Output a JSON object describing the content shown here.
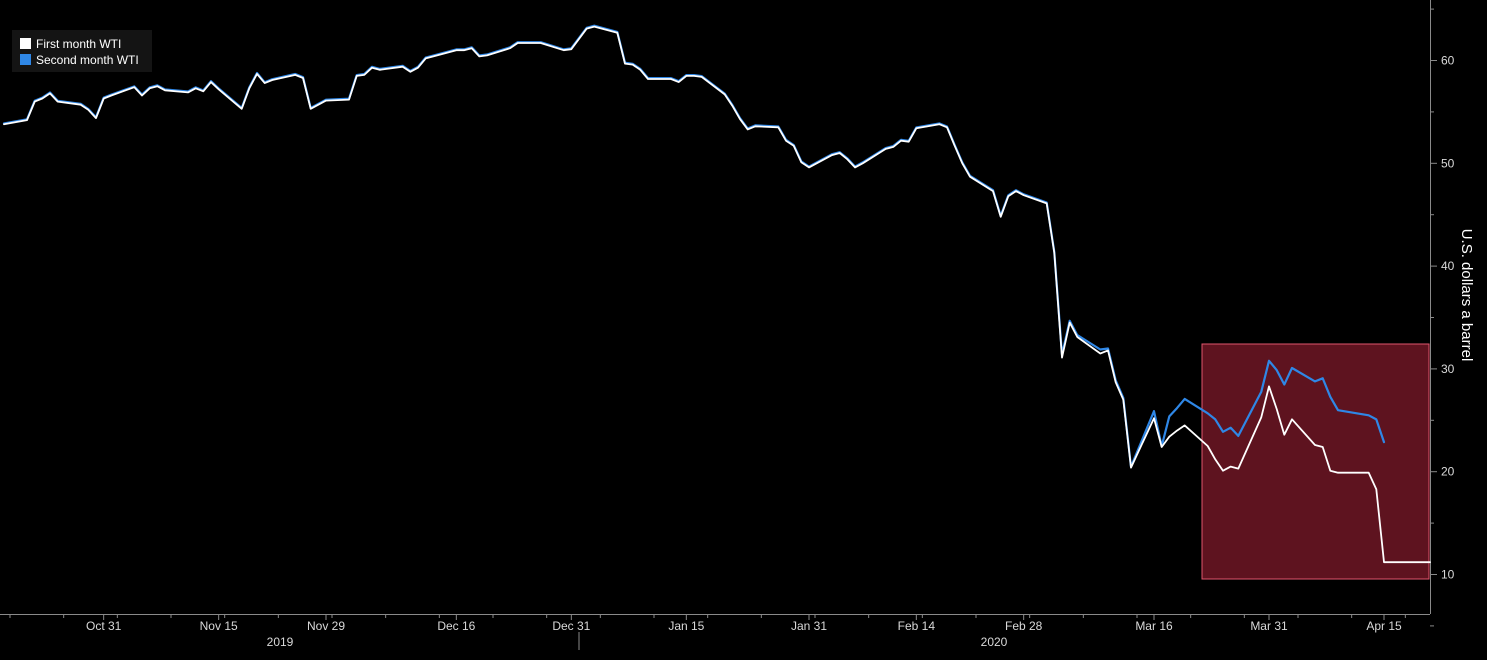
{
  "chart_data": {
    "type": "line",
    "title": "",
    "ylabel": "U.S. dollars a barrel",
    "ylim": [
      5,
      65
    ],
    "y_ticks": [
      10,
      20,
      30,
      40,
      50,
      60
    ],
    "x_tick_labels": [
      "Oct 31",
      "Nov 15",
      "Nov 29",
      "Dec 16",
      "Dec 31",
      "Jan 15",
      "Jan 31",
      "Feb 14",
      "Feb 28",
      "Mar 16",
      "Mar 31",
      "Apr 15"
    ],
    "year_labels": [
      "2019",
      "2020"
    ],
    "legend": {
      "position": "top-left",
      "entries": [
        {
          "label": "First month WTI",
          "color": "#ffffff"
        },
        {
          "label": "Second month WTI",
          "color": "#2f87e6"
        }
      ]
    },
    "highlight_color": "#d02a45",
    "x_start": "2019-10-18",
    "x_end": "2020-04-21",
    "series": [
      {
        "name": "First month WTI",
        "color": "#ffffff",
        "data": [
          [
            "2019-10-18",
            53.8
          ],
          [
            "2019-10-21",
            54.2
          ],
          [
            "2019-10-22",
            56.0
          ],
          [
            "2019-10-23",
            56.3
          ],
          [
            "2019-10-24",
            56.8
          ],
          [
            "2019-10-25",
            56.0
          ],
          [
            "2019-10-28",
            55.7
          ],
          [
            "2019-10-29",
            55.2
          ],
          [
            "2019-10-30",
            54.4
          ],
          [
            "2019-10-31",
            56.3
          ],
          [
            "2019-11-01",
            56.6
          ],
          [
            "2019-11-04",
            57.4
          ],
          [
            "2019-11-05",
            56.6
          ],
          [
            "2019-11-06",
            57.3
          ],
          [
            "2019-11-07",
            57.5
          ],
          [
            "2019-11-08",
            57.1
          ],
          [
            "2019-11-11",
            56.9
          ],
          [
            "2019-11-12",
            57.3
          ],
          [
            "2019-11-13",
            57.0
          ],
          [
            "2019-11-14",
            57.9
          ],
          [
            "2019-11-15",
            57.2
          ],
          [
            "2019-11-18",
            55.3
          ],
          [
            "2019-11-19",
            57.3
          ],
          [
            "2019-11-20",
            58.7
          ],
          [
            "2019-11-21",
            57.8
          ],
          [
            "2019-11-22",
            58.1
          ],
          [
            "2019-11-25",
            58.6
          ],
          [
            "2019-11-26",
            58.3
          ],
          [
            "2019-11-27",
            55.3
          ],
          [
            "2019-11-29",
            56.1
          ],
          [
            "2019-12-02",
            56.2
          ],
          [
            "2019-12-03",
            58.5
          ],
          [
            "2019-12-04",
            58.6
          ],
          [
            "2019-12-05",
            59.3
          ],
          [
            "2019-12-06",
            59.1
          ],
          [
            "2019-12-09",
            59.4
          ],
          [
            "2019-12-10",
            58.9
          ],
          [
            "2019-12-11",
            59.3
          ],
          [
            "2019-12-12",
            60.2
          ],
          [
            "2019-12-13",
            60.4
          ],
          [
            "2019-12-16",
            61.0
          ],
          [
            "2019-12-17",
            61.0
          ],
          [
            "2019-12-18",
            61.2
          ],
          [
            "2019-12-19",
            60.4
          ],
          [
            "2019-12-20",
            60.5
          ],
          [
            "2019-12-23",
            61.2
          ],
          [
            "2019-12-24",
            61.7
          ],
          [
            "2019-12-26",
            61.7
          ],
          [
            "2019-12-27",
            61.7
          ],
          [
            "2019-12-30",
            61.0
          ],
          [
            "2019-12-31",
            61.1
          ],
          [
            "2020-01-02",
            63.1
          ],
          [
            "2020-01-03",
            63.3
          ],
          [
            "2020-01-06",
            62.7
          ],
          [
            "2020-01-07",
            59.7
          ],
          [
            "2020-01-08",
            59.6
          ],
          [
            "2020-01-09",
            59.1
          ],
          [
            "2020-01-10",
            58.2
          ],
          [
            "2020-01-13",
            58.2
          ],
          [
            "2020-01-14",
            57.9
          ],
          [
            "2020-01-15",
            58.5
          ],
          [
            "2020-01-16",
            58.5
          ],
          [
            "2020-01-17",
            58.4
          ],
          [
            "2020-01-20",
            56.7
          ],
          [
            "2020-01-21",
            55.6
          ],
          [
            "2020-01-22",
            54.3
          ],
          [
            "2020-01-23",
            53.3
          ],
          [
            "2020-01-24",
            53.6
          ],
          [
            "2020-01-27",
            53.5
          ],
          [
            "2020-01-28",
            52.2
          ],
          [
            "2020-01-29",
            51.7
          ],
          [
            "2020-01-30",
            50.1
          ],
          [
            "2020-01-31",
            49.6
          ],
          [
            "2020-02-03",
            50.8
          ],
          [
            "2020-02-04",
            51.0
          ],
          [
            "2020-02-05",
            50.4
          ],
          [
            "2020-02-06",
            49.6
          ],
          [
            "2020-02-07",
            50.0
          ],
          [
            "2020-02-10",
            51.4
          ],
          [
            "2020-02-11",
            51.6
          ],
          [
            "2020-02-12",
            52.2
          ],
          [
            "2020-02-13",
            52.1
          ],
          [
            "2020-02-14",
            53.4
          ],
          [
            "2020-02-17",
            53.8
          ],
          [
            "2020-02-18",
            53.5
          ],
          [
            "2020-02-19",
            51.7
          ],
          [
            "2020-02-20",
            50.0
          ],
          [
            "2020-02-21",
            48.7
          ],
          [
            "2020-02-24",
            47.3
          ],
          [
            "2020-02-25",
            44.8
          ],
          [
            "2020-02-26",
            46.8
          ],
          [
            "2020-02-27",
            47.3
          ],
          [
            "2020-02-28",
            46.9
          ],
          [
            "2020-03-02",
            46.1
          ],
          [
            "2020-03-03",
            41.3
          ],
          [
            "2020-03-04",
            31.1
          ],
          [
            "2020-03-05",
            34.5
          ],
          [
            "2020-03-06",
            33.1
          ],
          [
            "2020-03-09",
            31.5
          ],
          [
            "2020-03-10",
            31.8
          ],
          [
            "2020-03-11",
            28.7
          ],
          [
            "2020-03-12",
            27.0
          ],
          [
            "2020-03-13",
            20.4
          ],
          [
            "2020-03-16",
            25.2
          ],
          [
            "2020-03-17",
            22.4
          ],
          [
            "2020-03-18",
            23.4
          ],
          [
            "2020-03-19",
            24.0
          ],
          [
            "2020-03-20",
            24.5
          ],
          [
            "2020-03-23",
            22.5
          ],
          [
            "2020-03-24",
            21.2
          ],
          [
            "2020-03-25",
            20.1
          ],
          [
            "2020-03-26",
            20.5
          ],
          [
            "2020-03-27",
            20.3
          ],
          [
            "2020-03-30",
            25.3
          ],
          [
            "2020-03-31",
            28.3
          ],
          [
            "2020-04-01",
            26.1
          ],
          [
            "2020-04-02",
            23.6
          ],
          [
            "2020-04-03",
            25.1
          ],
          [
            "2020-04-06",
            22.6
          ],
          [
            "2020-04-07",
            22.4
          ],
          [
            "2020-04-08",
            20.1
          ],
          [
            "2020-04-09",
            19.9
          ],
          [
            "2020-04-13",
            19.9
          ],
          [
            "2020-04-14",
            18.3
          ],
          [
            "2020-04-15",
            11.2
          ],
          [
            "2020-04-16",
            11.2
          ],
          [
            "2020-04-21",
            11.2
          ]
        ]
      },
      {
        "name": "Second month WTI",
        "color": "#2f87e6",
        "data": [
          [
            "2019-10-18",
            54.0
          ],
          [
            "2019-10-21",
            54.4
          ],
          [
            "2019-10-22",
            56.2
          ],
          [
            "2019-10-23",
            56.5
          ],
          [
            "2019-10-24",
            57.0
          ],
          [
            "2019-10-25",
            56.2
          ],
          [
            "2019-10-28",
            55.9
          ],
          [
            "2019-10-29",
            55.4
          ],
          [
            "2019-10-30",
            54.6
          ],
          [
            "2019-10-31",
            56.5
          ],
          [
            "2019-11-01",
            56.8
          ],
          [
            "2019-11-04",
            57.6
          ],
          [
            "2019-11-05",
            56.8
          ],
          [
            "2019-11-06",
            57.5
          ],
          [
            "2019-11-07",
            57.7
          ],
          [
            "2019-11-08",
            57.3
          ],
          [
            "2019-11-11",
            57.1
          ],
          [
            "2019-11-12",
            57.5
          ],
          [
            "2019-11-13",
            57.2
          ],
          [
            "2019-11-14",
            58.1
          ],
          [
            "2019-11-15",
            57.4
          ],
          [
            "2019-11-18",
            55.5
          ],
          [
            "2019-11-19",
            57.5
          ],
          [
            "2019-11-20",
            58.9
          ],
          [
            "2019-11-21",
            58.0
          ],
          [
            "2019-11-22",
            58.3
          ],
          [
            "2019-11-25",
            58.8
          ],
          [
            "2019-11-26",
            58.5
          ],
          [
            "2019-11-27",
            55.5
          ],
          [
            "2019-11-29",
            56.3
          ],
          [
            "2019-12-02",
            56.4
          ],
          [
            "2019-12-03",
            58.7
          ],
          [
            "2019-12-04",
            58.8
          ],
          [
            "2019-12-05",
            59.5
          ],
          [
            "2019-12-06",
            59.3
          ],
          [
            "2019-12-09",
            59.6
          ],
          [
            "2019-12-10",
            59.1
          ],
          [
            "2019-12-11",
            59.5
          ],
          [
            "2019-12-12",
            60.4
          ],
          [
            "2019-12-13",
            60.6
          ],
          [
            "2019-12-16",
            61.2
          ],
          [
            "2019-12-17",
            61.2
          ],
          [
            "2019-12-18",
            61.4
          ],
          [
            "2019-12-19",
            60.6
          ],
          [
            "2019-12-20",
            60.7
          ],
          [
            "2019-12-23",
            61.4
          ],
          [
            "2019-12-24",
            61.9
          ],
          [
            "2019-12-26",
            61.9
          ],
          [
            "2019-12-27",
            61.9
          ],
          [
            "2019-12-30",
            61.2
          ],
          [
            "2019-12-31",
            61.3
          ],
          [
            "2020-01-02",
            63.3
          ],
          [
            "2020-01-03",
            63.5
          ],
          [
            "2020-01-06",
            62.9
          ],
          [
            "2020-01-07",
            59.9
          ],
          [
            "2020-01-08",
            59.8
          ],
          [
            "2020-01-09",
            59.3
          ],
          [
            "2020-01-10",
            58.4
          ],
          [
            "2020-01-13",
            58.4
          ],
          [
            "2020-01-14",
            58.1
          ],
          [
            "2020-01-15",
            58.7
          ],
          [
            "2020-01-16",
            58.7
          ],
          [
            "2020-01-17",
            58.6
          ],
          [
            "2020-01-20",
            56.9
          ],
          [
            "2020-01-21",
            55.8
          ],
          [
            "2020-01-22",
            54.5
          ],
          [
            "2020-01-23",
            53.5
          ],
          [
            "2020-01-24",
            53.8
          ],
          [
            "2020-01-27",
            53.7
          ],
          [
            "2020-01-28",
            52.4
          ],
          [
            "2020-01-29",
            51.9
          ],
          [
            "2020-01-30",
            50.3
          ],
          [
            "2020-01-31",
            49.8
          ],
          [
            "2020-02-03",
            51.0
          ],
          [
            "2020-02-04",
            51.2
          ],
          [
            "2020-02-05",
            50.6
          ],
          [
            "2020-02-06",
            49.8
          ],
          [
            "2020-02-07",
            50.2
          ],
          [
            "2020-02-10",
            51.6
          ],
          [
            "2020-02-11",
            51.8
          ],
          [
            "2020-02-12",
            52.4
          ],
          [
            "2020-02-13",
            52.3
          ],
          [
            "2020-02-14",
            53.6
          ],
          [
            "2020-02-17",
            54.0
          ],
          [
            "2020-02-18",
            53.7
          ],
          [
            "2020-02-19",
            51.9
          ],
          [
            "2020-02-20",
            50.2
          ],
          [
            "2020-02-21",
            48.9
          ],
          [
            "2020-02-24",
            47.5
          ],
          [
            "2020-02-25",
            45.0
          ],
          [
            "2020-02-26",
            47.0
          ],
          [
            "2020-02-27",
            47.5
          ],
          [
            "2020-02-28",
            47.1
          ],
          [
            "2020-03-02",
            46.3
          ],
          [
            "2020-03-03",
            41.5
          ],
          [
            "2020-03-04",
            31.5
          ],
          [
            "2020-03-05",
            34.8
          ],
          [
            "2020-03-06",
            33.4
          ],
          [
            "2020-03-09",
            32.0
          ],
          [
            "2020-03-10",
            32.1
          ],
          [
            "2020-03-11",
            29.0
          ],
          [
            "2020-03-12",
            27.3
          ],
          [
            "2020-03-13",
            20.6
          ],
          [
            "2020-03-16",
            26.0
          ],
          [
            "2020-03-17",
            22.6
          ],
          [
            "2020-03-18",
            25.5
          ],
          [
            "2020-03-19",
            26.3
          ],
          [
            "2020-03-20",
            27.2
          ],
          [
            "2020-03-23",
            25.8
          ],
          [
            "2020-03-24",
            25.2
          ],
          [
            "2020-03-25",
            24.0
          ],
          [
            "2020-03-26",
            24.4
          ],
          [
            "2020-03-27",
            23.6
          ],
          [
            "2020-03-30",
            27.9
          ],
          [
            "2020-03-31",
            30.9
          ],
          [
            "2020-04-01",
            30.0
          ],
          [
            "2020-04-02",
            28.6
          ],
          [
            "2020-04-03",
            30.2
          ],
          [
            "2020-04-06",
            28.9
          ],
          [
            "2020-04-07",
            29.2
          ],
          [
            "2020-04-08",
            27.4
          ],
          [
            "2020-04-09",
            26.1
          ],
          [
            "2020-04-13",
            25.6
          ],
          [
            "2020-04-14",
            25.2
          ],
          [
            "2020-04-15",
            23.0
          ]
        ]
      }
    ]
  }
}
